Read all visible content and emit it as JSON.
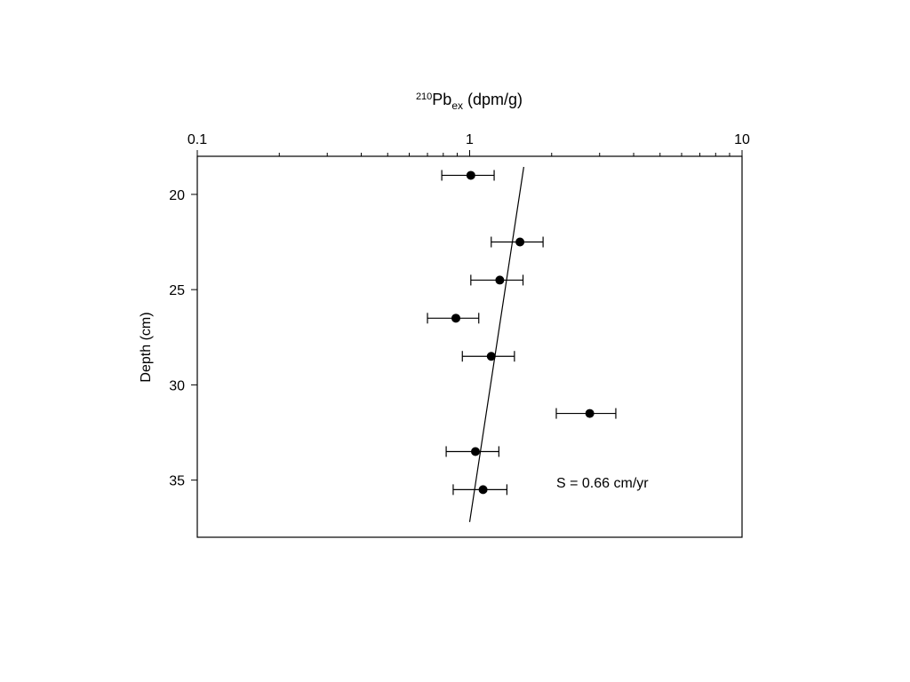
{
  "chart_data": {
    "type": "scatter",
    "xlabel": {
      "sup": "210",
      "main": "Pb",
      "sub": "ex",
      "rest": " (dpm/g)"
    },
    "ylabel": "Depth (cm)",
    "annotation": "S = 0.66 cm/yr",
    "x_log": true,
    "y_inverted": true,
    "color": "#000000",
    "xlim": [
      0.1,
      10
    ],
    "xticks": [
      0.1,
      1,
      10
    ],
    "xminor_ticks": [
      0.2,
      0.3,
      0.4,
      0.5,
      0.6,
      0.7,
      0.8,
      0.9,
      2,
      3,
      4,
      5,
      6,
      7,
      8,
      9
    ],
    "ylim": [
      18,
      38
    ],
    "yticks": [
      20,
      25,
      30,
      35
    ],
    "series": [
      {
        "x": [
          1.01,
          1.53,
          1.29,
          0.89,
          1.2,
          2.76,
          1.05,
          1.12
        ],
        "y": [
          19,
          22.5,
          24.5,
          26.5,
          28.5,
          31.5,
          33.5,
          35.5
        ],
        "xerr": [
          0.22,
          0.33,
          0.28,
          0.19,
          0.26,
          0.68,
          0.23,
          0.25
        ]
      }
    ],
    "fit_line": {
      "x": [
        1.58,
        1.0
      ],
      "y": [
        18.56,
        37.2
      ]
    }
  }
}
